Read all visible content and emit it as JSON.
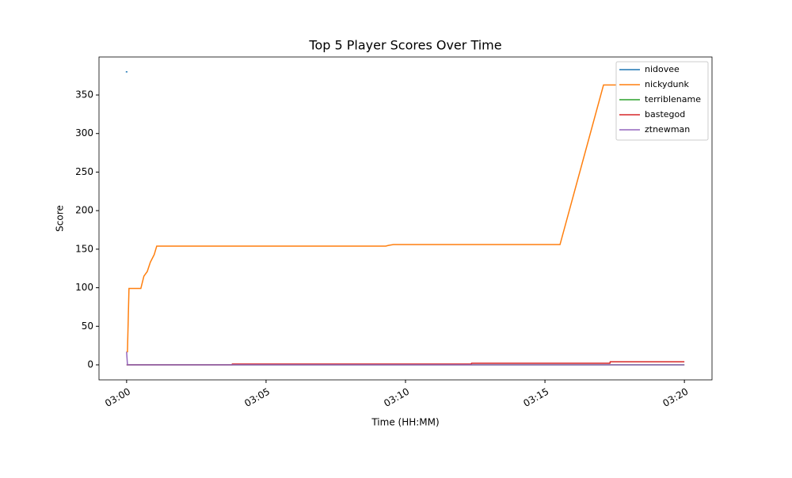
{
  "chart_data": {
    "type": "line",
    "title": "Top 5 Player Scores Over Time",
    "x_label": "Time (HH:MM)",
    "y_label": "Score",
    "xlim": [
      -0.99,
      20.99
    ],
    "ylim": [
      -19.5,
      399.3
    ],
    "xticks": [
      {
        "value": 0,
        "label": "03:00"
      },
      {
        "value": 5,
        "label": "03:05"
      },
      {
        "value": 10,
        "label": "03:10"
      },
      {
        "value": 15,
        "label": "03:15"
      },
      {
        "value": 20,
        "label": "03:20"
      }
    ],
    "yticks": [
      0,
      50,
      100,
      150,
      200,
      250,
      300,
      350
    ],
    "legend": "upper right",
    "series": [
      {
        "name": "nidovee",
        "color": "#1f77b4",
        "x": [
          -0.03,
          0.03
        ],
        "values": [
          380,
          380
        ]
      },
      {
        "name": "nickydunk",
        "color": "#ff7f0e",
        "x": [
          0,
          0.03,
          0.085,
          0.51,
          0.62,
          0.74,
          0.85,
          0.99,
          1.08,
          9.29,
          9.4,
          9.57,
          15.54,
          17.1,
          20
        ],
        "values": [
          17,
          17,
          99,
          99,
          115,
          121,
          133,
          143,
          154,
          154,
          155,
          156,
          156,
          363,
          363
        ]
      },
      {
        "name": "terriblename",
        "color": "#2ca02c",
        "x": [
          0,
          20
        ],
        "values": [
          0,
          0
        ]
      },
      {
        "name": "bastegod",
        "color": "#d62728",
        "x": [
          0,
          3.78,
          3.79,
          12.36,
          12.37,
          17.33,
          17.34,
          20
        ],
        "values": [
          0,
          0,
          1,
          1,
          2,
          2,
          4,
          4
        ]
      },
      {
        "name": "ztnewman",
        "color": "#9467bd",
        "x": [
          0,
          0.03,
          20
        ],
        "values": [
          17,
          0,
          0
        ]
      }
    ]
  }
}
